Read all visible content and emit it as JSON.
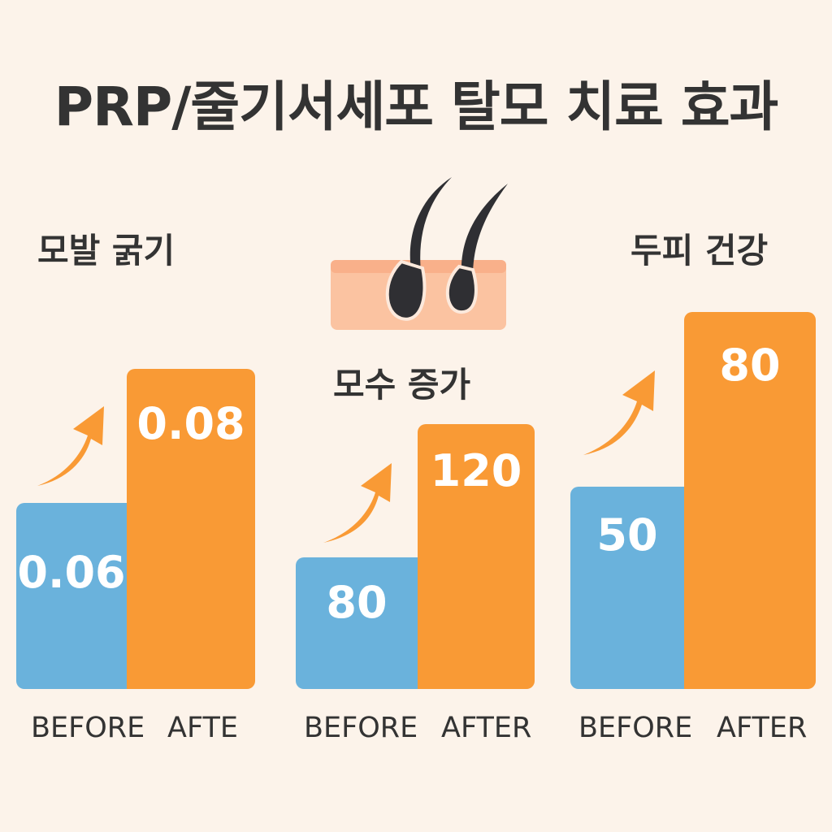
{
  "title": "PRP/줄기서세포 탈모 치료 효과",
  "colors": {
    "background": "#fcf3ea",
    "before": "#6ab2dc",
    "after": "#f99a35",
    "arrow": "#f99a35",
    "text": "#333333",
    "value_text": "#ffffff",
    "skin": "#fbc3a1",
    "hair": "#2f2f33"
  },
  "icons": {
    "arrow": "up-right-arrow-icon",
    "hair": "hair-follicle-icon"
  },
  "chart_data": [
    {
      "type": "bar",
      "title": "모발 굵기",
      "categories": [
        "BEFORE",
        "AFTE"
      ],
      "values": [
        0.06,
        0.08
      ],
      "value_labels": [
        "0.06",
        "0.08"
      ]
    },
    {
      "type": "bar",
      "title": "모수 증가",
      "categories": [
        "BEFORE",
        "AFTER"
      ],
      "values": [
        80,
        120
      ],
      "value_labels": [
        "80",
        "120"
      ]
    },
    {
      "type": "bar",
      "title": "두피 건강",
      "categories": [
        "BEFORE",
        "AFTER"
      ],
      "values": [
        50,
        80
      ],
      "value_labels": [
        "50",
        "80"
      ]
    }
  ]
}
